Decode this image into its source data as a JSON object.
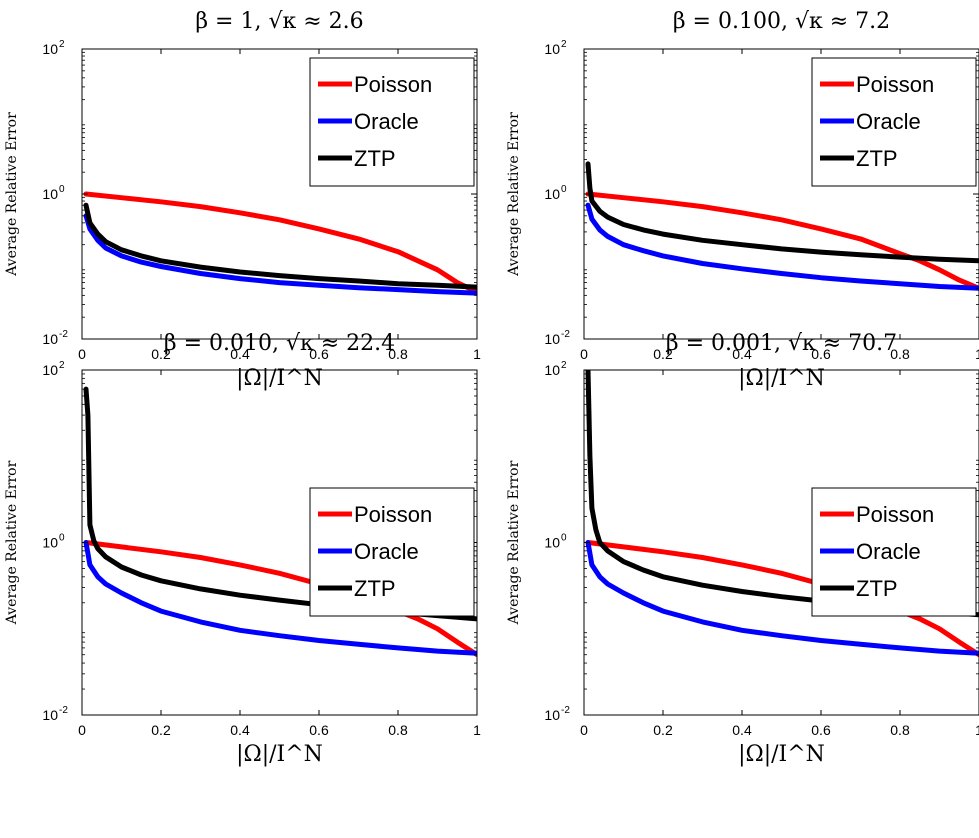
{
  "chart_data": [
    {
      "type": "line",
      "title": "β = 1, √κ ≈ 2.6",
      "xlabel": "|Ω|/I^N",
      "ylabel": "Average Relative Error",
      "xlim": [
        0,
        1
      ],
      "ylim": [
        0.01,
        100
      ],
      "yscale": "log",
      "legend_position": "top-right",
      "x_ticks": [
        "0",
        "0.2",
        "0.4",
        "0.6",
        "0.8",
        "1"
      ],
      "y_ticks": [
        {
          "base": "10",
          "exp": "-2"
        },
        {
          "base": "10",
          "exp": "0"
        },
        {
          "base": "10",
          "exp": "2"
        }
      ],
      "series": [
        {
          "name": "Poisson",
          "color": "#ff0000",
          "x": [
            0.01,
            0.1,
            0.2,
            0.3,
            0.4,
            0.5,
            0.6,
            0.7,
            0.8,
            0.9,
            0.95,
            0.98,
            1.0
          ],
          "y": [
            1.0,
            0.89,
            0.78,
            0.67,
            0.55,
            0.44,
            0.33,
            0.24,
            0.16,
            0.09,
            0.06,
            0.05,
            0.045
          ]
        },
        {
          "name": "Oracle",
          "color": "#0000ff",
          "x": [
            0.01,
            0.02,
            0.04,
            0.06,
            0.1,
            0.15,
            0.2,
            0.3,
            0.4,
            0.5,
            0.6,
            0.7,
            0.8,
            0.9,
            1.0
          ],
          "y": [
            0.5,
            0.33,
            0.23,
            0.18,
            0.14,
            0.115,
            0.1,
            0.08,
            0.068,
            0.06,
            0.055,
            0.051,
            0.048,
            0.045,
            0.043
          ]
        },
        {
          "name": "ZTP",
          "color": "#000000",
          "x": [
            0.01,
            0.02,
            0.04,
            0.06,
            0.1,
            0.15,
            0.2,
            0.3,
            0.4,
            0.5,
            0.6,
            0.7,
            0.8,
            0.9,
            1.0
          ],
          "y": [
            0.7,
            0.4,
            0.28,
            0.22,
            0.17,
            0.14,
            0.12,
            0.098,
            0.084,
            0.075,
            0.068,
            0.063,
            0.058,
            0.055,
            0.052
          ]
        }
      ]
    },
    {
      "type": "line",
      "title": "β = 0.100, √κ ≈ 7.2",
      "xlabel": "|Ω|/I^N",
      "ylabel": "Average Relative Error",
      "xlim": [
        0,
        1
      ],
      "ylim": [
        0.01,
        100
      ],
      "yscale": "log",
      "legend_position": "top-right",
      "x_ticks": [
        "0",
        "0.2",
        "0.4",
        "0.6",
        "0.8",
        "1"
      ],
      "y_ticks": [
        {
          "base": "10",
          "exp": "-2"
        },
        {
          "base": "10",
          "exp": "0"
        },
        {
          "base": "10",
          "exp": "2"
        }
      ],
      "series": [
        {
          "name": "Poisson",
          "color": "#ff0000",
          "x": [
            0.01,
            0.1,
            0.2,
            0.3,
            0.4,
            0.5,
            0.6,
            0.7,
            0.8,
            0.85,
            0.9,
            0.95,
            1.0
          ],
          "y": [
            1.0,
            0.89,
            0.78,
            0.67,
            0.55,
            0.44,
            0.33,
            0.24,
            0.15,
            0.12,
            0.09,
            0.065,
            0.05
          ]
        },
        {
          "name": "Oracle",
          "color": "#0000ff",
          "x": [
            0.01,
            0.02,
            0.04,
            0.06,
            0.1,
            0.15,
            0.2,
            0.3,
            0.4,
            0.5,
            0.6,
            0.7,
            0.8,
            0.9,
            1.0
          ],
          "y": [
            0.7,
            0.45,
            0.32,
            0.26,
            0.2,
            0.165,
            0.14,
            0.11,
            0.093,
            0.08,
            0.07,
            0.063,
            0.058,
            0.053,
            0.05
          ]
        },
        {
          "name": "ZTP",
          "color": "#000000",
          "x": [
            0.01,
            0.015,
            0.02,
            0.04,
            0.06,
            0.1,
            0.15,
            0.2,
            0.3,
            0.4,
            0.5,
            0.6,
            0.7,
            0.8,
            0.9,
            1.0
          ],
          "y": [
            2.6,
            1.2,
            0.8,
            0.58,
            0.48,
            0.38,
            0.32,
            0.28,
            0.23,
            0.2,
            0.175,
            0.158,
            0.145,
            0.135,
            0.126,
            0.12
          ]
        }
      ]
    },
    {
      "type": "line",
      "title": "β = 0.010, √κ ≈ 22.4",
      "xlabel": "|Ω|/I^N",
      "ylabel": "Average Relative Error",
      "xlim": [
        0,
        1
      ],
      "ylim": [
        0.01,
        100
      ],
      "yscale": "log",
      "legend_position": "top-right",
      "x_ticks": [
        "0",
        "0.2",
        "0.4",
        "0.6",
        "0.8",
        "1"
      ],
      "y_ticks": [
        {
          "base": "10",
          "exp": "-2"
        },
        {
          "base": "10",
          "exp": "0"
        },
        {
          "base": "10",
          "exp": "2"
        }
      ],
      "series": [
        {
          "name": "Poisson",
          "color": "#ff0000",
          "x": [
            0.01,
            0.1,
            0.2,
            0.3,
            0.4,
            0.5,
            0.6,
            0.7,
            0.8,
            0.85,
            0.9,
            0.95,
            1.0
          ],
          "y": [
            1.0,
            0.89,
            0.78,
            0.67,
            0.55,
            0.44,
            0.33,
            0.24,
            0.16,
            0.13,
            0.1,
            0.07,
            0.05
          ]
        },
        {
          "name": "Oracle",
          "color": "#0000ff",
          "x": [
            0.01,
            0.015,
            0.02,
            0.04,
            0.06,
            0.1,
            0.15,
            0.2,
            0.3,
            0.4,
            0.5,
            0.6,
            0.7,
            0.8,
            0.9,
            1.0
          ],
          "y": [
            1.0,
            0.75,
            0.55,
            0.4,
            0.33,
            0.26,
            0.2,
            0.16,
            0.12,
            0.096,
            0.083,
            0.073,
            0.066,
            0.06,
            0.055,
            0.052
          ]
        },
        {
          "name": "ZTP",
          "color": "#000000",
          "x": [
            0.01,
            0.015,
            0.02,
            0.03,
            0.04,
            0.06,
            0.1,
            0.15,
            0.2,
            0.3,
            0.4,
            0.5,
            0.6,
            0.7,
            0.8,
            0.9,
            1.0
          ],
          "y": [
            60,
            30,
            1.6,
            1.05,
            0.85,
            0.68,
            0.52,
            0.42,
            0.36,
            0.29,
            0.245,
            0.215,
            0.19,
            0.17,
            0.155,
            0.142,
            0.13
          ]
        }
      ]
    },
    {
      "type": "line",
      "title": "β = 0.001, √κ ≈ 70.7",
      "xlabel": "|Ω|/I^N",
      "ylabel": "Average Relative Error",
      "xlim": [
        0,
        1
      ],
      "ylim": [
        0.01,
        100
      ],
      "yscale": "log",
      "legend_position": "top-right",
      "x_ticks": [
        "0",
        "0.2",
        "0.4",
        "0.6",
        "0.8",
        "1"
      ],
      "y_ticks": [
        {
          "base": "10",
          "exp": "-2"
        },
        {
          "base": "10",
          "exp": "0"
        },
        {
          "base": "10",
          "exp": "2"
        }
      ],
      "series": [
        {
          "name": "Poisson",
          "color": "#ff0000",
          "x": [
            0.01,
            0.1,
            0.2,
            0.3,
            0.4,
            0.5,
            0.6,
            0.7,
            0.8,
            0.85,
            0.9,
            0.95,
            1.0
          ],
          "y": [
            1.0,
            0.89,
            0.78,
            0.67,
            0.55,
            0.44,
            0.33,
            0.24,
            0.16,
            0.13,
            0.1,
            0.07,
            0.05
          ]
        },
        {
          "name": "Oracle",
          "color": "#0000ff",
          "x": [
            0.01,
            0.015,
            0.02,
            0.04,
            0.06,
            0.1,
            0.15,
            0.2,
            0.3,
            0.4,
            0.5,
            0.6,
            0.7,
            0.8,
            0.9,
            1.0
          ],
          "y": [
            1.0,
            0.75,
            0.55,
            0.4,
            0.33,
            0.26,
            0.2,
            0.16,
            0.12,
            0.096,
            0.083,
            0.073,
            0.066,
            0.06,
            0.055,
            0.052
          ]
        },
        {
          "name": "ZTP",
          "color": "#000000",
          "x": [
            0.005,
            0.01,
            0.015,
            0.02,
            0.03,
            0.04,
            0.06,
            0.1,
            0.15,
            0.2,
            0.3,
            0.4,
            0.5,
            0.6,
            0.7,
            0.8,
            0.9,
            1.0
          ],
          "y": [
            200,
            100,
            10,
            2.5,
            1.4,
            1.0,
            0.8,
            0.6,
            0.48,
            0.4,
            0.32,
            0.27,
            0.235,
            0.21,
            0.19,
            0.17,
            0.157,
            0.145
          ]
        }
      ]
    }
  ]
}
